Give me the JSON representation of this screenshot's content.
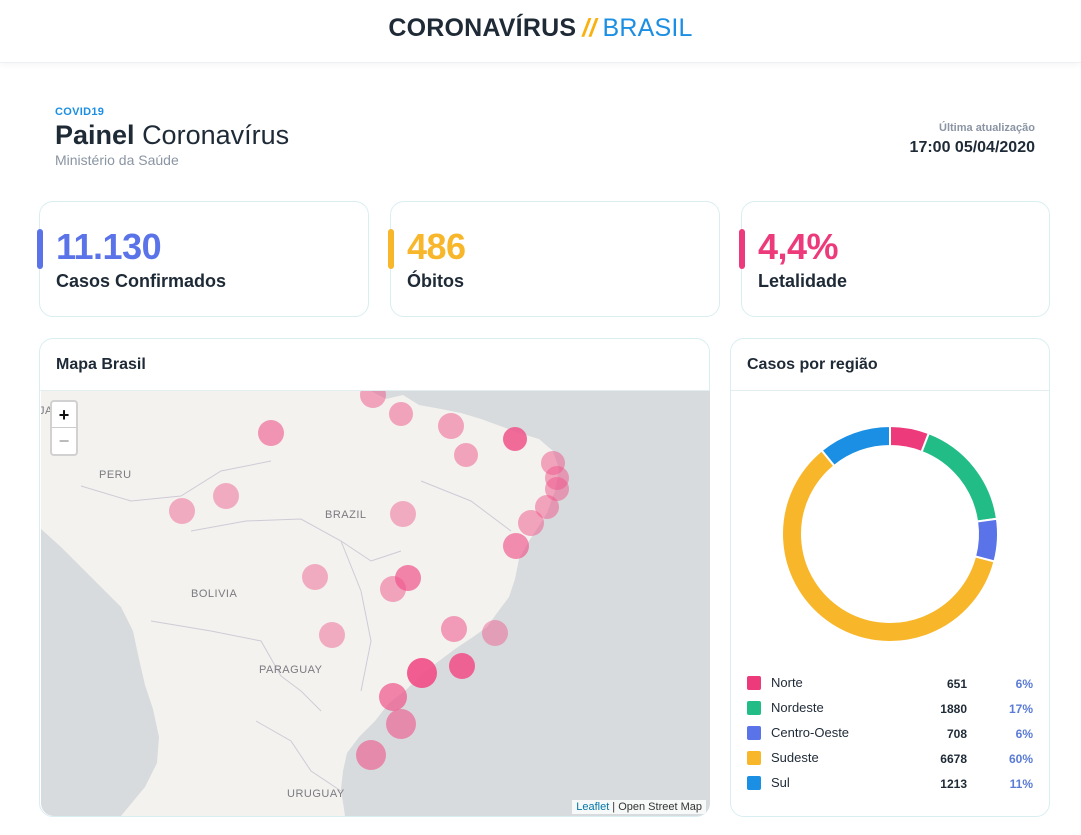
{
  "brand": {
    "part1": "CORONAVÍRUS",
    "sep": "//",
    "part2": "BRASIL"
  },
  "header": {
    "tag": "COVID19",
    "title_bold": "Painel",
    "title_rest": "Coronavírus",
    "subtitle": "Ministério da Saúde",
    "update_label": "Última atualização",
    "update_value": "17:00 05/04/2020"
  },
  "stats": [
    {
      "value": "11.130",
      "label": "Casos Confirmados",
      "color": "#5b73e8"
    },
    {
      "value": "486",
      "label": "Óbitos",
      "color": "#f8b62b"
    },
    {
      "value": "4,4%",
      "label": "Letalidade",
      "color": "#ec3a7b"
    }
  ],
  "map": {
    "title": "Mapa Brasil",
    "zoom_in": "+",
    "zoom_out": "−",
    "labels": [
      "PERU",
      "BRAZIL",
      "BOLIVIA",
      "PARAGUAY",
      "URUGUAY",
      "JAYA"
    ],
    "attribution_link": "Leaflet",
    "attribution_rest": " | Open Street Map",
    "marker_color": "#f0548a"
  },
  "regions": {
    "title": "Casos por região",
    "items": [
      {
        "name": "Norte",
        "count": "651",
        "pct": "6%",
        "value": 651,
        "color": "#ec3a7b"
      },
      {
        "name": "Nordeste",
        "count": "1880",
        "pct": "17%",
        "value": 1880,
        "color": "#22bd87"
      },
      {
        "name": "Centro-Oeste",
        "count": "708",
        "pct": "6%",
        "value": 708,
        "color": "#5b73e8"
      },
      {
        "name": "Sudeste",
        "count": "6678",
        "pct": "60%",
        "value": 6678,
        "color": "#f8b62b"
      },
      {
        "name": "Sul",
        "count": "1213",
        "pct": "11%",
        "value": 1213,
        "color": "#1a8fe3"
      }
    ]
  }
}
